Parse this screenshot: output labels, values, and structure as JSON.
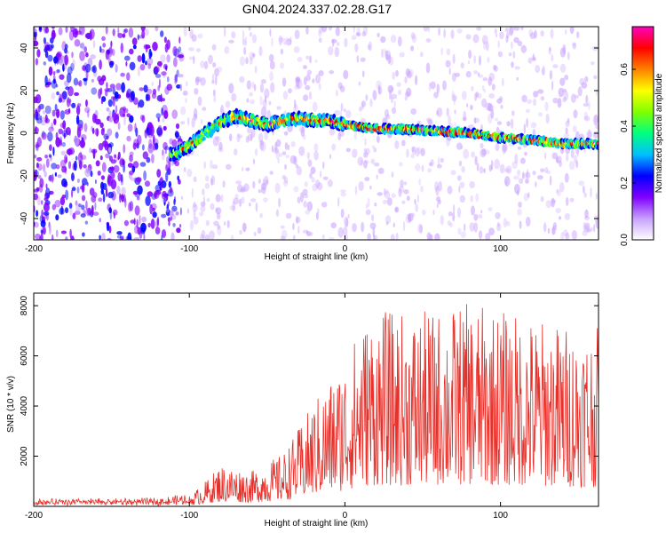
{
  "page": {
    "title": "GN04.2024.337.02.28.G17"
  },
  "chart_data": [
    {
      "type": "heatmap",
      "xlabel": "Height of straight line (km)",
      "ylabel": "Frequency (Hz)",
      "xlim": [
        -200,
        163
      ],
      "ylim": [
        -50,
        50
      ],
      "x_ticks": [
        "-200",
        "-100",
        "0",
        "100"
      ],
      "y_ticks": [
        "-40",
        "-20",
        "0",
        "20",
        "40"
      ],
      "colorbar": {
        "label": "Normalized spectral amplitude",
        "range": [
          0,
          0.75
        ],
        "ticks": [
          "0.0",
          "0.2",
          "0.4",
          "0.6"
        ],
        "colors": [
          "#ffffff",
          "#c8a0ff",
          "#8000ff",
          "#0000ff",
          "#00c0ff",
          "#00ff80",
          "#80ff00",
          "#ffff00",
          "#ff8000",
          "#ff0000",
          "#ff00c0"
        ]
      },
      "ridge": {
        "x": [
          -110,
          -100,
          -90,
          -80,
          -70,
          -60,
          -50,
          -40,
          -30,
          -20,
          -10,
          0,
          20,
          40,
          60,
          80,
          100,
          120,
          140,
          160
        ],
        "y": [
          -10,
          -6,
          0,
          5,
          8,
          6,
          4,
          6,
          7,
          6,
          6,
          4,
          2,
          2,
          1,
          0,
          -2,
          -3,
          -5,
          -5
        ]
      }
    },
    {
      "type": "line",
      "xlabel": "Height of straight line (km)",
      "ylabel": "SNR (10 * v/v)",
      "xlim": [
        -200,
        163
      ],
      "ylim": [
        0,
        8500
      ],
      "x_ticks": [
        "-200",
        "-100",
        "0",
        "100"
      ],
      "y_ticks": [
        "2000",
        "4000",
        "6000",
        "8000"
      ],
      "color": "#e8302a",
      "envelope": {
        "x": [
          -200,
          -120,
          -100,
          -90,
          -80,
          -60,
          -40,
          -30,
          -20,
          -10,
          0,
          10,
          20,
          40,
          60,
          80,
          100,
          120,
          140,
          163
        ],
        "y": [
          150,
          180,
          300,
          700,
          1200,
          1000,
          1500,
          2200,
          3000,
          3600,
          4200,
          5200,
          5600,
          5500,
          5600,
          5800,
          5600,
          5400,
          5200,
          5100
        ]
      }
    }
  ]
}
